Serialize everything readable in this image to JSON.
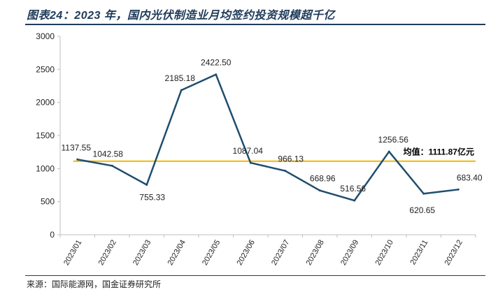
{
  "title": "图表24：2023 年，国内光伏制造业月均签约投资规模超千亿",
  "source": "来源：国际能源网，国金证券研究所",
  "colors": {
    "line": "#1f4e6e",
    "average": "#f2b705",
    "axis": "#bfbfbf",
    "title": "#1f3b5a"
  },
  "chart_data": {
    "type": "line",
    "categories": [
      "2023/01",
      "2023/02",
      "2023/03",
      "2023/04",
      "2023/05",
      "2023/06",
      "2023/07",
      "2023/08",
      "2023/09",
      "2023/10",
      "2023/11",
      "2023/12"
    ],
    "series": [
      {
        "values": [
          1137.55,
          1042.58,
          755.33,
          2185.18,
          2422.5,
          1087.04,
          966.13,
          668.96,
          516.56,
          1256.56,
          620.65,
          683.4
        ],
        "labels": [
          "1137.55",
          "1042.58",
          "755.33",
          "2185.18",
          "2422.50",
          "1087.04",
          "966.13",
          "668.96",
          "516.56",
          "1256.56",
          "620.65",
          "683.40"
        ]
      }
    ],
    "average": {
      "value": 1111.87,
      "label": "均值：1111.87亿元"
    },
    "ylim": [
      0,
      3000
    ],
    "yticks": [
      0,
      500,
      1000,
      1500,
      2000,
      2500,
      3000
    ],
    "grid": false,
    "xlabel": "",
    "ylabel": ""
  }
}
